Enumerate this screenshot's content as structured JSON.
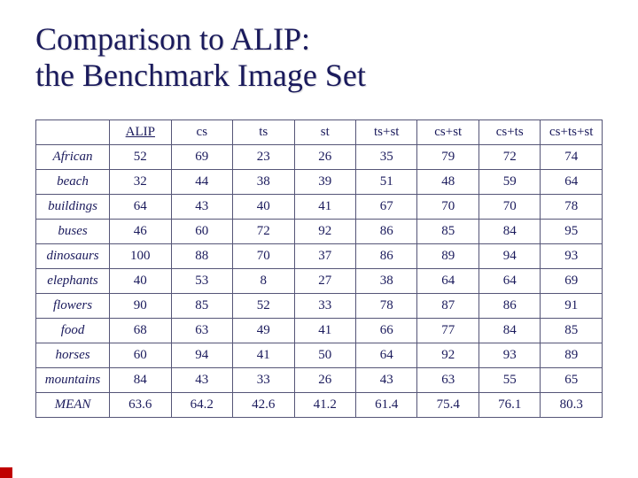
{
  "title_line1": "Comparison to ALIP:",
  "title_line2": "the Benchmark Image Set",
  "columns": [
    "ALIP",
    "cs",
    "ts",
    "st",
    "ts+st",
    "cs+st",
    "cs+ts",
    "cs+ts+st"
  ],
  "row_labels": [
    "African",
    "beach",
    "buildings",
    "buses",
    "dinosaurs",
    "elephants",
    "flowers",
    "food",
    "horses",
    "mountains",
    "MEAN"
  ],
  "rows": [
    [
      "52",
      "69",
      "23",
      "26",
      "35",
      "79",
      "72",
      "74"
    ],
    [
      "32",
      "44",
      "38",
      "39",
      "51",
      "48",
      "59",
      "64"
    ],
    [
      "64",
      "43",
      "40",
      "41",
      "67",
      "70",
      "70",
      "78"
    ],
    [
      "46",
      "60",
      "72",
      "92",
      "86",
      "85",
      "84",
      "95"
    ],
    [
      "100",
      "88",
      "70",
      "37",
      "86",
      "89",
      "94",
      "93"
    ],
    [
      "40",
      "53",
      "8",
      "27",
      "38",
      "64",
      "64",
      "69"
    ],
    [
      "90",
      "85",
      "52",
      "33",
      "78",
      "87",
      "86",
      "91"
    ],
    [
      "68",
      "63",
      "49",
      "41",
      "66",
      "77",
      "84",
      "85"
    ],
    [
      "60",
      "94",
      "41",
      "50",
      "64",
      "92",
      "93",
      "89"
    ],
    [
      "84",
      "43",
      "33",
      "26",
      "43",
      "63",
      "55",
      "65"
    ],
    [
      "63.6",
      "64.2",
      "42.6",
      "41.2",
      "61.4",
      "75.4",
      "76.1",
      "80.3"
    ]
  ],
  "style": {
    "title_color": "#1a1a5c",
    "title_fontsize": 36,
    "cell_fontsize": 15,
    "cell_color": "#1a1a5c",
    "border_color": "#555577",
    "background_color": "#ffffff",
    "accent_color": "#c00000",
    "font_family": "Georgia, Times New Roman, serif"
  }
}
